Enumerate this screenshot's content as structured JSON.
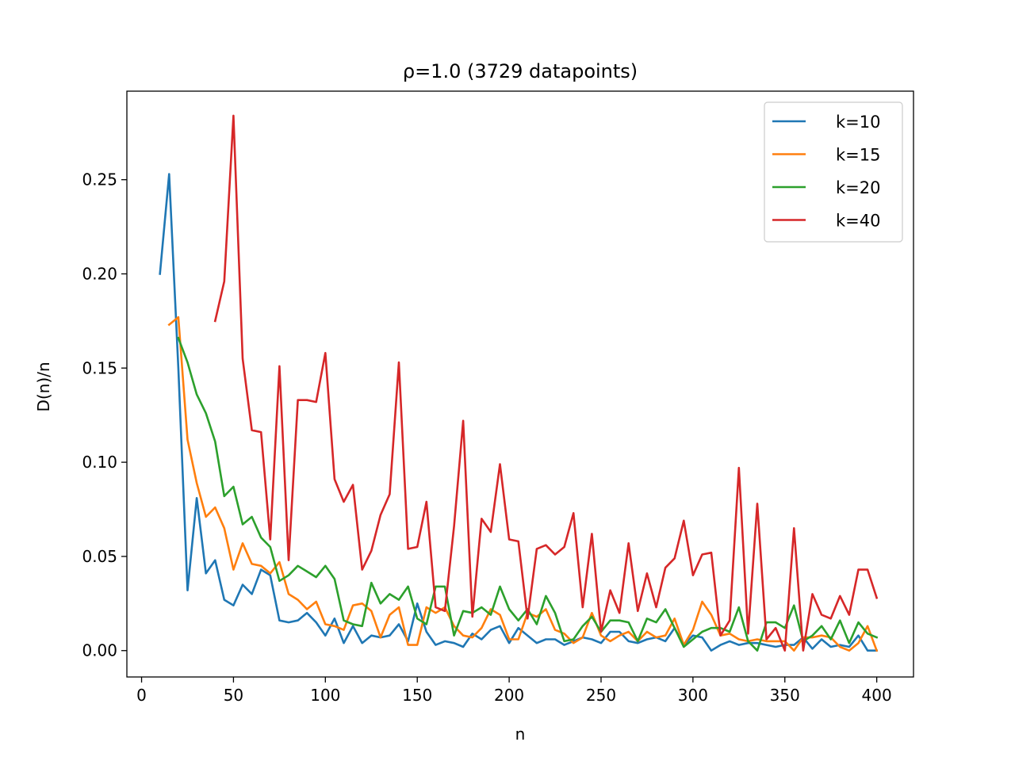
{
  "chart_data": {
    "type": "line",
    "title": "ρ=1.0 (3729 datapoints)",
    "xlabel": "n",
    "ylabel": "D(n)/n",
    "xlim": [
      -8,
      420
    ],
    "ylim": [
      -0.014,
      0.297
    ],
    "xticks": [
      0,
      50,
      100,
      150,
      200,
      250,
      300,
      350,
      400
    ],
    "xtick_labels": [
      "0",
      "50",
      "100",
      "150",
      "200",
      "250",
      "300",
      "350",
      "400"
    ],
    "yticks": [
      0.0,
      0.05,
      0.1,
      0.15,
      0.2,
      0.25
    ],
    "ytick_labels": [
      "0.00",
      "0.05",
      "0.10",
      "0.15",
      "0.20",
      "0.25"
    ],
    "grid": false,
    "legend_position": "top-right",
    "series": [
      {
        "name": "k=10",
        "color": "#1f77b4",
        "x": [
          10,
          15,
          20,
          25,
          30,
          35,
          40,
          45,
          50,
          55,
          60,
          65,
          70,
          75,
          80,
          85,
          90,
          95,
          100,
          105,
          110,
          115,
          120,
          125,
          130,
          135,
          140,
          145,
          150,
          155,
          160,
          165,
          170,
          175,
          180,
          185,
          190,
          195,
          200,
          205,
          210,
          215,
          220,
          225,
          230,
          235,
          240,
          245,
          250,
          255,
          260,
          265,
          270,
          275,
          280,
          285,
          290,
          295,
          300,
          305,
          310,
          315,
          320,
          325,
          330,
          335,
          340,
          345,
          350,
          355,
          360,
          365,
          370,
          375,
          380,
          385,
          390,
          395,
          400
        ],
        "values": [
          0.2,
          0.253,
          0.15,
          0.032,
          0.081,
          0.041,
          0.048,
          0.027,
          0.024,
          0.035,
          0.03,
          0.043,
          0.04,
          0.016,
          0.015,
          0.016,
          0.02,
          0.015,
          0.008,
          0.017,
          0.004,
          0.013,
          0.004,
          0.008,
          0.007,
          0.008,
          0.014,
          0.005,
          0.025,
          0.01,
          0.003,
          0.005,
          0.004,
          0.002,
          0.009,
          0.006,
          0.011,
          0.013,
          0.004,
          0.012,
          0.008,
          0.004,
          0.006,
          0.006,
          0.003,
          0.005,
          0.007,
          0.006,
          0.004,
          0.01,
          0.01,
          0.005,
          0.004,
          0.006,
          0.007,
          0.005,
          0.012,
          0.003,
          0.008,
          0.007,
          0.0,
          0.003,
          0.005,
          0.003,
          0.004,
          0.004,
          0.003,
          0.002,
          0.003,
          0.003,
          0.007,
          0.001,
          0.006,
          0.002,
          0.003,
          0.002,
          0.008,
          0.0,
          0.0
        ]
      },
      {
        "name": "k=15",
        "color": "#ff7f0e",
        "x": [
          15,
          20,
          25,
          30,
          35,
          40,
          45,
          50,
          55,
          60,
          65,
          70,
          75,
          80,
          85,
          90,
          95,
          100,
          105,
          110,
          115,
          120,
          125,
          130,
          135,
          140,
          145,
          150,
          155,
          160,
          165,
          170,
          175,
          180,
          185,
          190,
          195,
          200,
          205,
          210,
          215,
          220,
          225,
          230,
          235,
          240,
          245,
          250,
          255,
          260,
          265,
          270,
          275,
          280,
          285,
          290,
          295,
          300,
          305,
          310,
          315,
          320,
          325,
          330,
          335,
          340,
          345,
          350,
          355,
          360,
          365,
          370,
          375,
          380,
          385,
          390,
          395,
          400
        ],
        "values": [
          0.173,
          0.177,
          0.112,
          0.089,
          0.071,
          0.076,
          0.065,
          0.043,
          0.057,
          0.046,
          0.045,
          0.041,
          0.047,
          0.03,
          0.027,
          0.022,
          0.026,
          0.014,
          0.013,
          0.011,
          0.024,
          0.025,
          0.021,
          0.007,
          0.019,
          0.023,
          0.003,
          0.003,
          0.023,
          0.02,
          0.023,
          0.013,
          0.008,
          0.007,
          0.012,
          0.022,
          0.019,
          0.006,
          0.006,
          0.02,
          0.018,
          0.022,
          0.011,
          0.009,
          0.004,
          0.007,
          0.02,
          0.008,
          0.005,
          0.008,
          0.01,
          0.005,
          0.01,
          0.007,
          0.008,
          0.017,
          0.003,
          0.011,
          0.026,
          0.019,
          0.008,
          0.009,
          0.006,
          0.005,
          0.006,
          0.005,
          0.005,
          0.005,
          0.0,
          0.007,
          0.007,
          0.008,
          0.007,
          0.002,
          0.0,
          0.004,
          0.013,
          0.0
        ]
      },
      {
        "name": "k=20",
        "color": "#2ca02c",
        "x": [
          20,
          25,
          30,
          35,
          40,
          45,
          50,
          55,
          60,
          65,
          70,
          75,
          80,
          85,
          90,
          95,
          100,
          105,
          110,
          115,
          120,
          125,
          130,
          135,
          140,
          145,
          150,
          155,
          160,
          165,
          170,
          175,
          180,
          185,
          190,
          195,
          200,
          205,
          210,
          215,
          220,
          225,
          230,
          235,
          240,
          245,
          250,
          255,
          260,
          265,
          270,
          275,
          280,
          285,
          290,
          295,
          300,
          305,
          310,
          315,
          320,
          325,
          330,
          335,
          340,
          345,
          350,
          355,
          360,
          365,
          370,
          375,
          380,
          385,
          390,
          395,
          400
        ],
        "values": [
          0.166,
          0.153,
          0.136,
          0.126,
          0.111,
          0.082,
          0.087,
          0.067,
          0.071,
          0.06,
          0.055,
          0.037,
          0.04,
          0.045,
          0.042,
          0.039,
          0.045,
          0.038,
          0.016,
          0.014,
          0.013,
          0.036,
          0.025,
          0.03,
          0.027,
          0.034,
          0.017,
          0.014,
          0.034,
          0.034,
          0.008,
          0.021,
          0.02,
          0.023,
          0.019,
          0.034,
          0.022,
          0.016,
          0.022,
          0.014,
          0.029,
          0.02,
          0.005,
          0.006,
          0.013,
          0.018,
          0.01,
          0.016,
          0.016,
          0.015,
          0.005,
          0.017,
          0.015,
          0.022,
          0.012,
          0.002,
          0.006,
          0.01,
          0.012,
          0.012,
          0.01,
          0.023,
          0.005,
          0.0,
          0.015,
          0.015,
          0.012,
          0.024,
          0.005,
          0.008,
          0.013,
          0.006,
          0.016,
          0.004,
          0.015,
          0.009,
          0.007
        ]
      },
      {
        "name": "k=40",
        "color": "#d62728",
        "x": [
          40,
          45,
          50,
          55,
          60,
          65,
          70,
          75,
          80,
          85,
          90,
          95,
          100,
          105,
          110,
          115,
          120,
          125,
          130,
          135,
          140,
          145,
          150,
          155,
          160,
          165,
          170,
          175,
          180,
          185,
          190,
          195,
          200,
          205,
          210,
          215,
          220,
          225,
          230,
          235,
          240,
          245,
          250,
          255,
          260,
          265,
          270,
          275,
          280,
          285,
          290,
          295,
          300,
          305,
          310,
          315,
          320,
          325,
          330,
          335,
          340,
          345,
          350,
          355,
          360,
          365,
          370,
          375,
          380,
          385,
          390,
          395,
          400
        ],
        "values": [
          0.175,
          0.196,
          0.284,
          0.155,
          0.117,
          0.116,
          0.059,
          0.151,
          0.048,
          0.133,
          0.133,
          0.132,
          0.158,
          0.091,
          0.079,
          0.088,
          0.043,
          0.053,
          0.072,
          0.083,
          0.153,
          0.054,
          0.055,
          0.079,
          0.023,
          0.021,
          0.066,
          0.122,
          0.018,
          0.07,
          0.063,
          0.099,
          0.059,
          0.058,
          0.017,
          0.054,
          0.056,
          0.051,
          0.055,
          0.073,
          0.023,
          0.062,
          0.01,
          0.032,
          0.02,
          0.057,
          0.021,
          0.041,
          0.023,
          0.044,
          0.049,
          0.069,
          0.04,
          0.051,
          0.052,
          0.008,
          0.016,
          0.097,
          0.009,
          0.078,
          0.006,
          0.012,
          0.0,
          0.065,
          0.0,
          0.03,
          0.019,
          0.017,
          0.029,
          0.019,
          0.043,
          0.043,
          0.028
        ]
      }
    ]
  }
}
